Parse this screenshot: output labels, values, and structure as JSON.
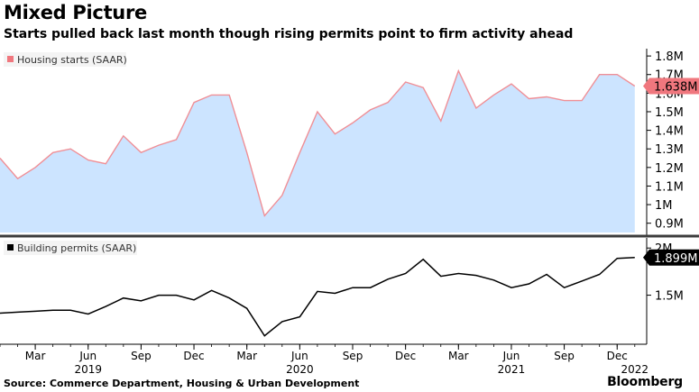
{
  "header": {
    "title": "Mixed Picture",
    "subtitle": "Starts pulled back last month though rising permits point to firm activity ahead"
  },
  "footer": {
    "source": "Source: Commerce Department, Housing & Urban Development",
    "brand": "Bloomberg"
  },
  "colors": {
    "starts_line": "#f08f96",
    "starts_fill": "#cce4ff",
    "starts_badge": "#f0777e",
    "permits_line": "#000000",
    "divider": "#3c3c3c",
    "grid": "#cfcfcf"
  },
  "chart_data": [
    {
      "type": "area",
      "panel": "top",
      "legend": "Housing starts (SAAR)",
      "legend_position": "top-left",
      "unit": "M",
      "x": [
        "2019-01",
        "2019-02",
        "2019-03",
        "2019-04",
        "2019-05",
        "2019-06",
        "2019-07",
        "2019-08",
        "2019-09",
        "2019-10",
        "2019-11",
        "2019-12",
        "2020-01",
        "2020-02",
        "2020-03",
        "2020-04",
        "2020-05",
        "2020-06",
        "2020-07",
        "2020-08",
        "2020-09",
        "2020-10",
        "2020-11",
        "2020-12",
        "2021-01",
        "2021-02",
        "2021-03",
        "2021-04",
        "2021-05",
        "2021-06",
        "2021-07",
        "2021-08",
        "2021-09",
        "2021-10",
        "2021-11",
        "2021-12",
        "2022-01"
      ],
      "series": [
        {
          "name": "Housing starts (SAAR)",
          "values": [
            1.25,
            1.14,
            1.2,
            1.28,
            1.3,
            1.24,
            1.22,
            1.37,
            1.28,
            1.32,
            1.35,
            1.55,
            1.59,
            1.59,
            1.28,
            0.94,
            1.05,
            1.28,
            1.5,
            1.38,
            1.44,
            1.51,
            1.55,
            1.66,
            1.63,
            1.45,
            1.72,
            1.52,
            1.59,
            1.65,
            1.57,
            1.58,
            1.56,
            1.56,
            1.7,
            1.7,
            1.638
          ]
        }
      ],
      "latest_label": "1.638M",
      "ylim": [
        0.85,
        1.82
      ],
      "yticks": [
        0.9,
        1.0,
        1.1,
        1.2,
        1.3,
        1.4,
        1.5,
        1.6,
        1.7,
        1.8
      ],
      "ytick_labels": [
        "0.9M",
        "1M",
        "1.1M",
        "1.2M",
        "1.3M",
        "1.4M",
        "1.5M",
        "1.6M",
        "1.7M",
        "1.8M"
      ],
      "grid": false
    },
    {
      "type": "line",
      "panel": "bottom",
      "legend": "Building permits (SAAR)",
      "legend_position": "top-left",
      "unit": "M",
      "x": [
        "2019-01",
        "2019-02",
        "2019-03",
        "2019-04",
        "2019-05",
        "2019-06",
        "2019-07",
        "2019-08",
        "2019-09",
        "2019-10",
        "2019-11",
        "2019-12",
        "2020-01",
        "2020-02",
        "2020-03",
        "2020-04",
        "2020-05",
        "2020-06",
        "2020-07",
        "2020-08",
        "2020-09",
        "2020-10",
        "2020-11",
        "2020-12",
        "2021-01",
        "2021-02",
        "2021-03",
        "2021-04",
        "2021-05",
        "2021-06",
        "2021-07",
        "2021-08",
        "2021-09",
        "2021-10",
        "2021-11",
        "2021-12",
        "2022-01"
      ],
      "series": [
        {
          "name": "Building permits (SAAR)",
          "values": [
            1.31,
            1.32,
            1.33,
            1.34,
            1.34,
            1.3,
            1.38,
            1.47,
            1.44,
            1.5,
            1.5,
            1.45,
            1.55,
            1.47,
            1.36,
            1.07,
            1.22,
            1.27,
            1.54,
            1.52,
            1.58,
            1.58,
            1.67,
            1.73,
            1.88,
            1.7,
            1.73,
            1.71,
            1.66,
            1.58,
            1.62,
            1.72,
            1.58,
            1.65,
            1.72,
            1.89,
            1.899
          ]
        }
      ],
      "latest_label": "1.899M",
      "ylim": [
        0.98,
        2.05
      ],
      "yticks": [
        1.5,
        2.0
      ],
      "ytick_labels": [
        "1.5M",
        "2M"
      ],
      "grid": false
    }
  ],
  "x_axis": {
    "month_ticks": [
      {
        "month": "2019-03",
        "label": "Mar"
      },
      {
        "month": "2019-06",
        "label": "Jun"
      },
      {
        "month": "2019-09",
        "label": "Sep"
      },
      {
        "month": "2019-12",
        "label": "Dec"
      },
      {
        "month": "2020-03",
        "label": "Mar"
      },
      {
        "month": "2020-06",
        "label": "Jun"
      },
      {
        "month": "2020-09",
        "label": "Sep"
      },
      {
        "month": "2020-12",
        "label": "Dec"
      },
      {
        "month": "2021-03",
        "label": "Mar"
      },
      {
        "month": "2021-06",
        "label": "Jun"
      },
      {
        "month": "2021-09",
        "label": "Sep"
      },
      {
        "month": "2021-12",
        "label": "Dec"
      }
    ],
    "year_labels": [
      {
        "month": "2019-06",
        "label": "2019"
      },
      {
        "month": "2020-06",
        "label": "2020"
      },
      {
        "month": "2021-06",
        "label": "2021"
      },
      {
        "month": "2022-01",
        "label": "2022"
      }
    ]
  }
}
